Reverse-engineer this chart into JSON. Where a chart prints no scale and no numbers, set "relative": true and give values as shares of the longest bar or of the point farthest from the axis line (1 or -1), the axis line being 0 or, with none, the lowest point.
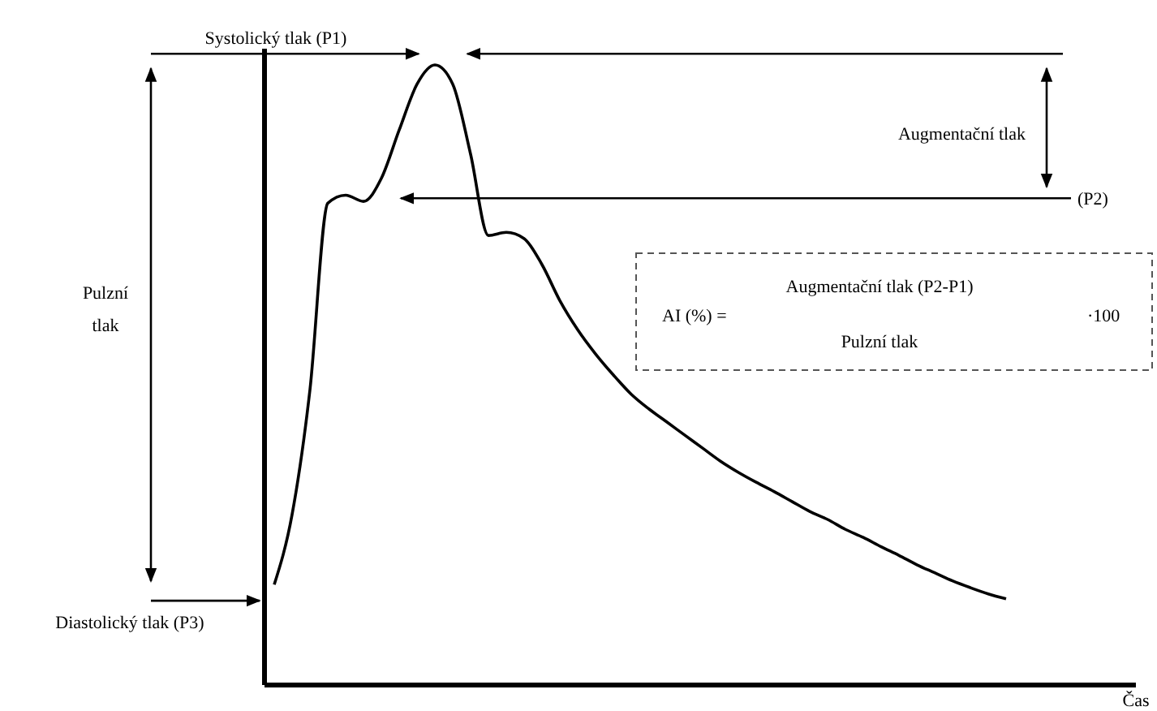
{
  "chart_data": {
    "type": "line",
    "relative": true,
    "xlabel": "Čas",
    "categories": [
      null,
      null,
      null,
      null,
      null,
      null,
      null,
      null,
      null,
      null,
      null,
      null,
      null,
      null,
      null,
      null,
      null,
      null,
      null,
      null,
      null,
      null,
      null,
      null,
      null,
      null,
      null,
      null,
      null,
      null,
      null,
      null,
      null,
      null,
      null,
      null,
      null,
      null,
      null,
      null,
      null,
      null,
      null,
      null,
      null,
      null,
      null,
      null,
      null
    ],
    "series": [
      {
        "color": "#000000",
        "values": [
          0.162,
          0.275,
          0.476,
          0.777,
          0.79,
          0.78,
          0.817,
          0.895,
          0.969,
          1,
          0.969,
          0.856,
          0.725,
          0.73,
          0.72,
          0.678,
          0.62,
          0.573,
          0.534,
          0.5,
          0.469,
          0.445,
          0.424,
          0.403,
          0.382,
          0.361,
          0.343,
          0.327,
          0.312,
          0.296,
          0.28,
          0.267,
          0.251,
          0.238,
          0.223,
          0.209,
          0.194,
          0.181,
          0.168,
          0.157,
          0.147,
          0.139,
          null,
          null,
          null,
          null,
          null,
          null,
          null
        ]
      }
    ],
    "ref_lines": [
      {
        "axis": "y",
        "value": 1.018,
        "label": "Systolický tlak (P1)",
        "color": "#000000"
      },
      {
        "axis": "y",
        "value": 0.785,
        "label": "(P2)",
        "color": "#000000"
      },
      {
        "axis": "y",
        "value": 0.136,
        "label": "Diastolický tlak (P3)",
        "color": "#000000"
      }
    ],
    "annotations": [
      "Augmentační tlak",
      "Pulzní tlak",
      "AI (%) =",
      "Augmentační tlak (P2-P1)",
      "Pulzní tlak",
      "·100"
    ]
  }
}
